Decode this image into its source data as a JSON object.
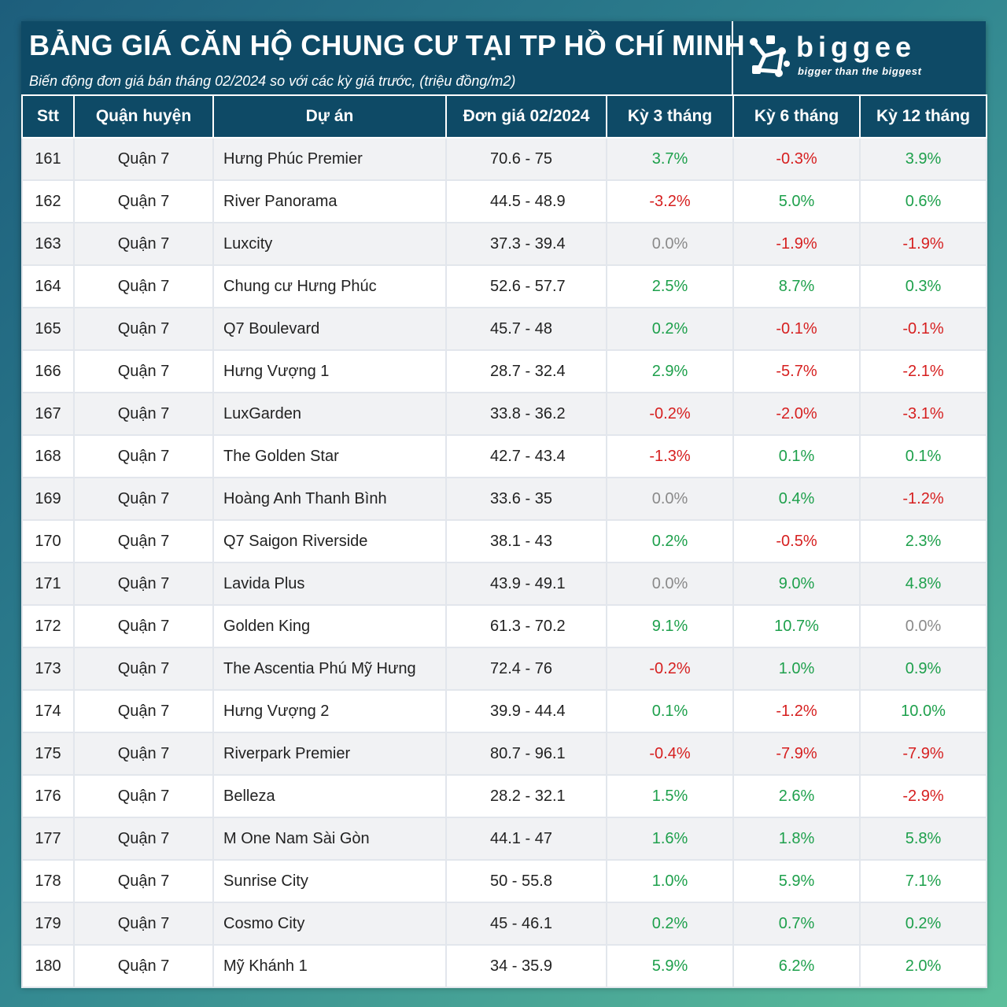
{
  "header": {
    "title": "BẢNG GIÁ CĂN HỘ CHUNG CƯ TẠI TP HỒ CHÍ MINH",
    "subtitle": "Biến động đơn giá bán tháng 02/2024 so với các kỳ giá trước, (triệu đồng/m2)"
  },
  "logo": {
    "word": "biggee",
    "tagline": "bigger than the biggest",
    "icon": "biggee-logo-icon"
  },
  "colors": {
    "header_bg": "#0e4a66",
    "positive": "#1ea04c",
    "negative": "#d61f1f",
    "zero": "#8a8a8a"
  },
  "table": {
    "columns": [
      "Stt",
      "Quận huyện",
      "Dự án",
      "Đơn giá 02/2024",
      "Kỳ 3 tháng",
      "Kỳ 6 tháng",
      "Kỳ 12 tháng"
    ],
    "rows": [
      {
        "stt": "161",
        "district": "Quận 7",
        "project": "Hưng Phúc Premier",
        "price": "70.6 - 75",
        "k3": "3.7%",
        "k6": "-0.3%",
        "k12": "3.9%"
      },
      {
        "stt": "162",
        "district": "Quận 7",
        "project": "River Panorama",
        "price": "44.5 - 48.9",
        "k3": "-3.2%",
        "k6": "5.0%",
        "k12": "0.6%"
      },
      {
        "stt": "163",
        "district": "Quận 7",
        "project": "Luxcity",
        "price": "37.3 - 39.4",
        "k3": "0.0%",
        "k6": "-1.9%",
        "k12": "-1.9%"
      },
      {
        "stt": "164",
        "district": "Quận 7",
        "project": "Chung cư Hưng Phúc",
        "price": "52.6 - 57.7",
        "k3": "2.5%",
        "k6": "8.7%",
        "k12": "0.3%"
      },
      {
        "stt": "165",
        "district": "Quận 7",
        "project": "Q7 Boulevard",
        "price": "45.7 - 48",
        "k3": "0.2%",
        "k6": "-0.1%",
        "k12": "-0.1%"
      },
      {
        "stt": "166",
        "district": "Quận 7",
        "project": "Hưng Vượng 1",
        "price": "28.7 - 32.4",
        "k3": "2.9%",
        "k6": "-5.7%",
        "k12": "-2.1%"
      },
      {
        "stt": "167",
        "district": "Quận 7",
        "project": "LuxGarden",
        "price": "33.8 - 36.2",
        "k3": "-0.2%",
        "k6": "-2.0%",
        "k12": "-3.1%"
      },
      {
        "stt": "168",
        "district": "Quận 7",
        "project": "The Golden Star",
        "price": "42.7 - 43.4",
        "k3": "-1.3%",
        "k6": "0.1%",
        "k12": "0.1%"
      },
      {
        "stt": "169",
        "district": "Quận 7",
        "project": "Hoàng Anh Thanh Bình",
        "price": "33.6 - 35",
        "k3": "0.0%",
        "k6": "0.4%",
        "k12": "-1.2%"
      },
      {
        "stt": "170",
        "district": "Quận 7",
        "project": "Q7 Saigon Riverside",
        "price": "38.1 - 43",
        "k3": "0.2%",
        "k6": "-0.5%",
        "k12": "2.3%"
      },
      {
        "stt": "171",
        "district": "Quận 7",
        "project": "Lavida Plus",
        "price": "43.9 - 49.1",
        "k3": "0.0%",
        "k6": "9.0%",
        "k12": "4.8%"
      },
      {
        "stt": "172",
        "district": "Quận 7",
        "project": "Golden King",
        "price": "61.3 - 70.2",
        "k3": "9.1%",
        "k6": "10.7%",
        "k12": "0.0%"
      },
      {
        "stt": "173",
        "district": "Quận 7",
        "project": "The Ascentia Phú Mỹ Hưng",
        "price": "72.4 - 76",
        "k3": "-0.2%",
        "k6": "1.0%",
        "k12": "0.9%"
      },
      {
        "stt": "174",
        "district": "Quận 7",
        "project": "Hưng Vượng 2",
        "price": "39.9 - 44.4",
        "k3": "0.1%",
        "k6": "-1.2%",
        "k12": "10.0%"
      },
      {
        "stt": "175",
        "district": "Quận 7",
        "project": "Riverpark Premier",
        "price": "80.7 - 96.1",
        "k3": "-0.4%",
        "k6": "-7.9%",
        "k12": "-7.9%"
      },
      {
        "stt": "176",
        "district": "Quận 7",
        "project": "Belleza",
        "price": "28.2 - 32.1",
        "k3": "1.5%",
        "k6": "2.6%",
        "k12": "-2.9%"
      },
      {
        "stt": "177",
        "district": "Quận 7",
        "project": "M One Nam Sài Gòn",
        "price": "44.1 - 47",
        "k3": "1.6%",
        "k6": "1.8%",
        "k12": "5.8%"
      },
      {
        "stt": "178",
        "district": "Quận 7",
        "project": "Sunrise City",
        "price": "50 - 55.8",
        "k3": "1.0%",
        "k6": "5.9%",
        "k12": "7.1%"
      },
      {
        "stt": "179",
        "district": "Quận 7",
        "project": "Cosmo City",
        "price": "45 - 46.1",
        "k3": "0.2%",
        "k6": "0.7%",
        "k12": "0.2%"
      },
      {
        "stt": "180",
        "district": "Quận 7",
        "project": "Mỹ Khánh 1",
        "price": "34 - 35.9",
        "k3": "5.9%",
        "k6": "6.2%",
        "k12": "2.0%"
      }
    ]
  }
}
